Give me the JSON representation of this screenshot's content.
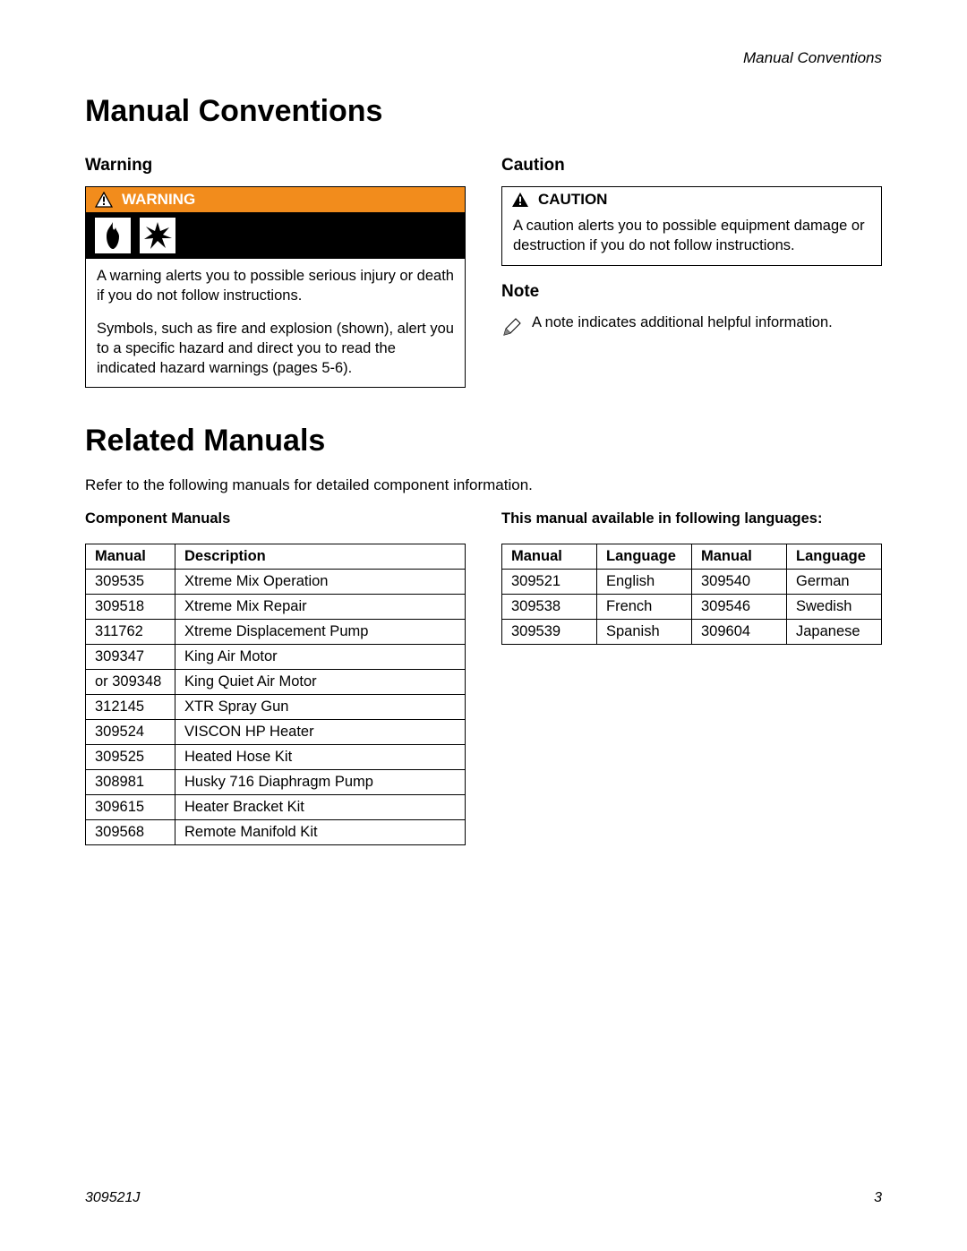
{
  "header": {
    "section_title": "Manual Conventions"
  },
  "h1_conventions": "Manual Conventions",
  "warning": {
    "heading": "Warning",
    "banner": "WARNING",
    "p1": "A warning alerts you to possible serious injury or death if you do not follow instructions.",
    "p2": "Symbols, such as fire and explosion (shown), alert you to a specific hazard and direct you to read the indicated hazard warnings (pages 5-6)."
  },
  "caution": {
    "heading": "Caution",
    "banner": "CAUTION",
    "body": "A caution alerts you to possible equipment damage or destruction if you do not follow instructions."
  },
  "note": {
    "heading": "Note",
    "body": "A note indicates additional helpful information."
  },
  "h1_related": "Related Manuals",
  "related_intro": "Refer to the following manuals for detailed component information.",
  "component": {
    "subhead": "Component Manuals",
    "col_manual": "Manual",
    "col_desc": "Description",
    "rows": [
      {
        "manual": "309535",
        "desc": "Xtreme Mix Operation"
      },
      {
        "manual": "309518",
        "desc": "Xtreme Mix Repair"
      },
      {
        "manual": "311762",
        "desc": "Xtreme Displacement Pump"
      },
      {
        "manual": "309347",
        "desc": "King Air Motor"
      },
      {
        "manual": "or 309348",
        "desc": "King Quiet Air Motor"
      },
      {
        "manual": "312145",
        "desc": "XTR Spray Gun"
      },
      {
        "manual": "309524",
        "desc": "VISCON HP Heater"
      },
      {
        "manual": "309525",
        "desc": "Heated Hose Kit"
      },
      {
        "manual": "308981",
        "desc": "Husky 716 Diaphragm Pump"
      },
      {
        "manual": "309615",
        "desc": "Heater Bracket Kit"
      },
      {
        "manual": "309568",
        "desc": "Remote Manifold Kit"
      }
    ]
  },
  "languages": {
    "subhead": "This manual available in following languages:",
    "col_manual": "Manual",
    "col_lang": "Language",
    "rows": [
      {
        "m1": "309521",
        "l1": "English",
        "m2": "309540",
        "l2": "German"
      },
      {
        "m1": "309538",
        "l1": "French",
        "m2": "309546",
        "l2": "Swedish"
      },
      {
        "m1": "309539",
        "l1": "Spanish",
        "m2": "309604",
        "l2": "Japanese"
      }
    ]
  },
  "footer": {
    "docid": "309521J",
    "page": "3"
  },
  "colors": {
    "warning_bg": "#f28c1c",
    "warning_fg": "#ffffff",
    "border": "#000000",
    "text": "#000000",
    "page_bg": "#ffffff"
  }
}
